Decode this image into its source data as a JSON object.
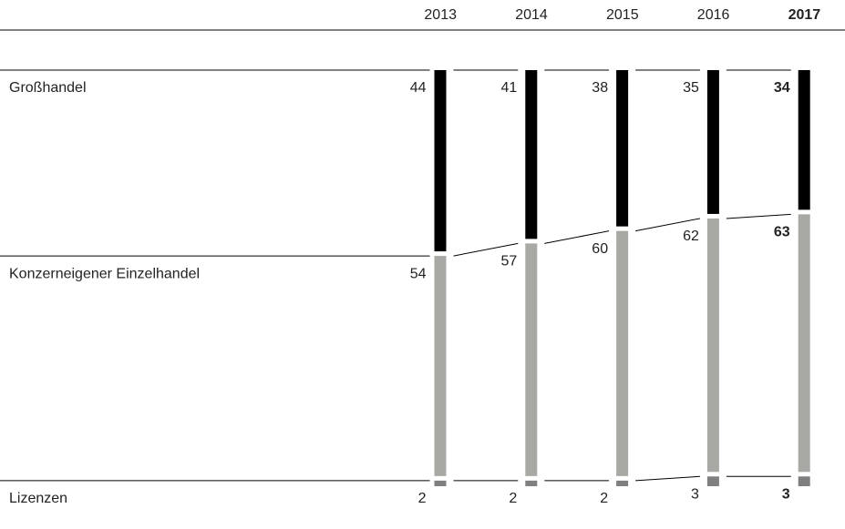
{
  "chart_data": {
    "type": "stacked_bar",
    "categories": [
      "2013",
      "2014",
      "2015",
      "2016",
      "2017"
    ],
    "series": [
      {
        "name": "Großhandel",
        "color": "#000000",
        "values": [
          44,
          41,
          38,
          35,
          34
        ]
      },
      {
        "name": "Konzerneigener Einzelhandel",
        "color": "#a8a8a4",
        "values": [
          54,
          57,
          60,
          62,
          63
        ]
      },
      {
        "name": "Lizenzen",
        "color": "#7f7f7f",
        "values": [
          2,
          2,
          2,
          3,
          3
        ]
      }
    ],
    "ylim": [
      0,
      100
    ],
    "emphasize_last": true
  }
}
